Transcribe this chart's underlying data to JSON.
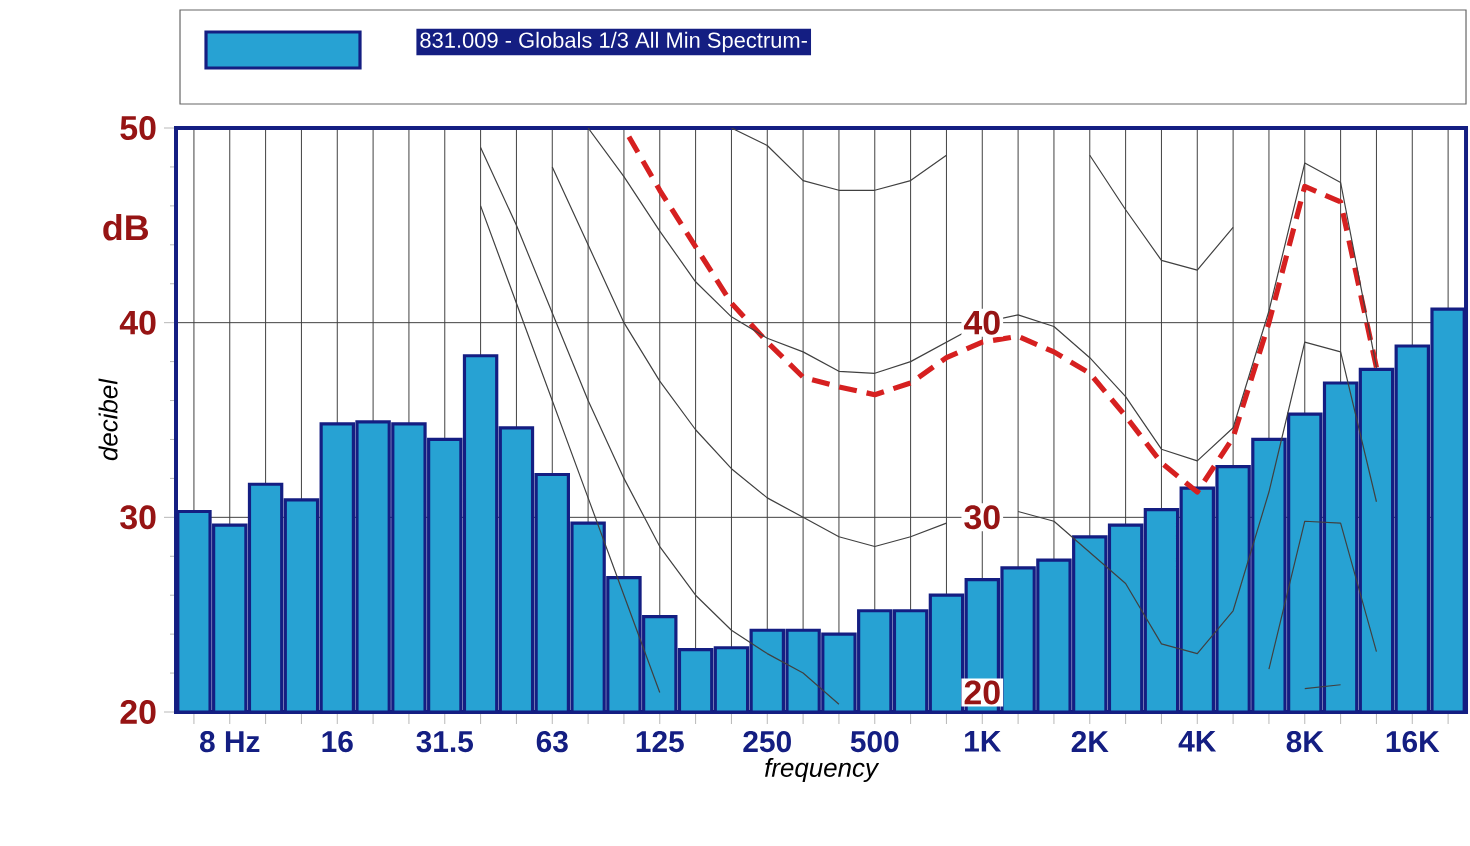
{
  "chart_data": {
    "type": "bar",
    "legend": "top",
    "grid": true,
    "xlabel": "frequency",
    "ylabel": "decibel",
    "ylim": [
      20,
      50
    ],
    "yticks": [
      20,
      30,
      40,
      50
    ],
    "categories": [
      null,
      "8 Hz",
      null,
      null,
      "16",
      null,
      null,
      "31.5",
      null,
      null,
      "63",
      null,
      null,
      "125",
      null,
      null,
      "250",
      null,
      null,
      "500",
      null,
      null,
      "1K",
      null,
      null,
      "2K",
      null,
      null,
      "4K",
      null,
      null,
      "8K",
      null,
      null,
      "16K",
      null
    ],
    "annotations": [
      "dB",
      {
        "text": "40",
        "x": "1K",
        "y": 40
      },
      {
        "text": "30",
        "x": "1K",
        "y": 30
      },
      {
        "text": "20",
        "x": "1K",
        "y": 21
      }
    ],
    "series": [
      {
        "name": "831.009 - Globals 1/3 All Min Spectrum-",
        "color": "#27a2d3",
        "values": [
          30.3,
          29.6,
          31.7,
          30.9,
          34.8,
          34.9,
          34.8,
          34.0,
          38.3,
          34.6,
          32.2,
          29.7,
          26.9,
          24.9,
          23.2,
          23.3,
          24.2,
          24.2,
          24.0,
          25.2,
          25.2,
          26.0,
          26.8,
          27.4,
          27.8,
          29.0,
          29.6,
          30.4,
          31.5,
          32.6,
          34.0,
          35.3,
          36.9,
          37.6,
          38.8,
          40.7
        ]
      },
      {
        "type": "line",
        "color": "#d62020",
        "line_style": "dashed",
        "values": [
          null,
          null,
          null,
          null,
          null,
          null,
          null,
          null,
          null,
          null,
          null,
          null,
          50,
          46.8,
          43.9,
          41.0,
          39.0,
          37.2,
          36.7,
          36.3,
          36.9,
          38.2,
          39.0,
          39.3,
          38.5,
          37.4,
          35.2,
          32.8,
          31.3,
          34.1,
          40.0,
          47.0,
          46.2,
          37.7,
          null,
          null
        ]
      },
      {
        "type": "line",
        "color": "#404040",
        "line_style": "solid",
        "values": [
          null,
          null,
          null,
          null,
          null,
          null,
          null,
          null,
          null,
          null,
          null,
          null,
          null,
          null,
          null,
          50,
          49.1,
          47.3,
          46.8,
          46.8,
          47.3,
          48.6,
          null,
          null,
          null,
          48.6,
          45.8,
          43.2,
          42.7,
          44.9,
          null,
          null,
          null,
          null,
          null,
          null
        ]
      },
      {
        "type": "line",
        "color": "#404040",
        "line_style": "solid",
        "values": [
          null,
          null,
          null,
          null,
          null,
          null,
          null,
          null,
          null,
          null,
          null,
          50,
          47.5,
          44.7,
          42.1,
          40.3,
          39.2,
          38.5,
          37.5,
          37.4,
          38.0,
          39.0,
          40.0,
          40.4,
          39.8,
          38.2,
          36.2,
          33.5,
          32.9,
          34.6,
          40.6,
          48.2,
          47.2,
          37.7,
          null,
          null
        ]
      },
      {
        "type": "line",
        "color": "#404040",
        "line_style": "solid",
        "values": [
          null,
          null,
          null,
          null,
          null,
          null,
          null,
          null,
          null,
          null,
          48,
          44,
          40,
          37,
          34.5,
          32.5,
          31,
          30.0,
          29.0,
          28.5,
          29.0,
          29.7,
          null,
          30.3,
          29.8,
          28.2,
          26.6,
          23.5,
          23.0,
          25.2,
          31.3,
          39.0,
          38.5,
          30.8,
          null,
          null
        ]
      },
      {
        "type": "line",
        "color": "#404040",
        "line_style": "solid",
        "values": [
          null,
          null,
          null,
          null,
          null,
          null,
          null,
          null,
          49,
          45,
          40.5,
          36,
          32,
          28.5,
          26,
          24.2,
          23,
          22.0,
          20.4,
          null,
          null,
          null,
          null,
          null,
          null,
          null,
          null,
          null,
          null,
          null,
          22.2,
          29.8,
          29.7,
          23.1,
          null,
          null
        ]
      },
      {
        "type": "line",
        "color": "#404040",
        "line_style": "solid",
        "values": [
          null,
          null,
          null,
          null,
          null,
          null,
          null,
          null,
          46,
          41,
          36,
          31,
          26,
          21,
          null,
          null,
          null,
          null,
          null,
          null,
          null,
          null,
          null,
          null,
          null,
          null,
          null,
          null,
          null,
          null,
          null,
          21.2,
          21.4,
          null,
          null,
          null
        ]
      }
    ]
  }
}
